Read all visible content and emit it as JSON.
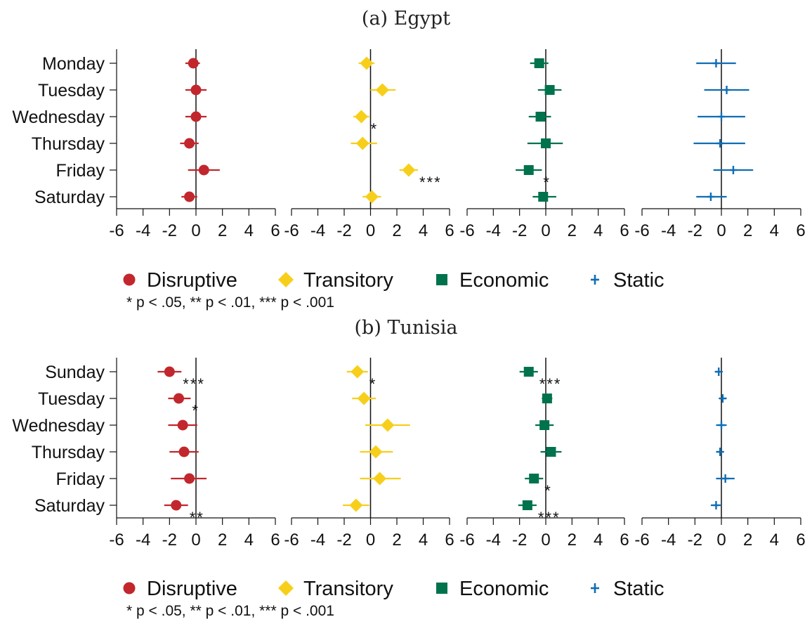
{
  "colors": {
    "disruptive": "#c1272d",
    "transitory": "#f7cf1b",
    "economic": "#00724e",
    "static": "#0f6db5"
  },
  "legend": {
    "items": [
      {
        "label": "Disruptive",
        "marker": "circle",
        "color_key": "disruptive"
      },
      {
        "label": "Transitory",
        "marker": "diamond",
        "color_key": "transitory"
      },
      {
        "label": "Economic",
        "marker": "square",
        "color_key": "economic"
      },
      {
        "label": "Static",
        "marker": "plus",
        "color_key": "static"
      }
    ],
    "note": "* p < .05, ** p < .01, *** p < .001"
  },
  "chart_data": [
    {
      "type": "scatter",
      "title": "(a) Egypt",
      "categories": [
        "Monday",
        "Tuesday",
        "Wednesday",
        "Thursday",
        "Friday",
        "Saturday"
      ],
      "xlim": [
        -6,
        6
      ],
      "xticks": [
        "-6",
        "-4",
        "-2",
        "0",
        "2",
        "4",
        "6"
      ],
      "series": [
        {
          "name": "Disruptive",
          "marker": "circle",
          "color_key": "disruptive",
          "values": [
            -0.2,
            0.0,
            0.0,
            -0.5,
            0.6,
            -0.5
          ],
          "ci_low": [
            -0.8,
            -0.8,
            -0.8,
            -1.2,
            -0.6,
            -1.1
          ],
          "ci_high": [
            0.3,
            0.8,
            0.8,
            0.2,
            1.8,
            0.1
          ],
          "sig": [
            "",
            "",
            "",
            "",
            "",
            ""
          ]
        },
        {
          "name": "Transitory",
          "marker": "diamond",
          "color_key": "transitory",
          "values": [
            -0.3,
            0.9,
            -0.7,
            -0.6,
            2.9,
            0.1
          ],
          "ci_low": [
            -0.9,
            0.0,
            -1.3,
            -1.5,
            2.2,
            -0.6
          ],
          "ci_high": [
            0.3,
            1.9,
            -0.1,
            0.5,
            3.6,
            0.8
          ],
          "sig": [
            "",
            "",
            "*",
            "",
            "***",
            ""
          ]
        },
        {
          "name": "Economic",
          "marker": "square",
          "color_key": "economic",
          "values": [
            -0.5,
            0.3,
            -0.4,
            0.0,
            -1.3,
            -0.2
          ],
          "ci_low": [
            -1.2,
            -0.6,
            -1.3,
            -1.4,
            -2.3,
            -1.0
          ],
          "ci_high": [
            0.2,
            1.2,
            0.4,
            1.3,
            -0.3,
            0.8
          ],
          "sig": [
            "",
            "",
            "",
            "",
            "*",
            ""
          ]
        },
        {
          "name": "Static",
          "marker": "plus",
          "color_key": "static",
          "values": [
            -0.4,
            0.4,
            0.0,
            -0.1,
            0.9,
            -0.8
          ],
          "ci_low": [
            -1.9,
            -1.3,
            -1.8,
            -2.1,
            -0.6,
            -1.9
          ],
          "ci_high": [
            1.1,
            2.1,
            1.8,
            1.8,
            2.4,
            0.4
          ],
          "sig": [
            "",
            "",
            "",
            "",
            "",
            ""
          ]
        }
      ]
    },
    {
      "type": "scatter",
      "title": "(b) Tunisia",
      "categories": [
        "Sunday",
        "Tuesday",
        "Wednesday",
        "Thursday",
        "Friday",
        "Saturday"
      ],
      "xlim": [
        -6,
        6
      ],
      "xticks": [
        "-6",
        "-4",
        "-2",
        "0",
        "2",
        "4",
        "6"
      ],
      "series": [
        {
          "name": "Disruptive",
          "marker": "circle",
          "color_key": "disruptive",
          "values": [
            -2.0,
            -1.3,
            -1.0,
            -0.9,
            -0.5,
            -1.5
          ],
          "ci_low": [
            -2.9,
            -2.1,
            -2.1,
            -2.0,
            -1.9,
            -2.4
          ],
          "ci_high": [
            -1.1,
            -0.4,
            0.1,
            0.2,
            0.8,
            -0.6
          ],
          "sig": [
            "***",
            "*",
            "",
            "",
            "",
            "**"
          ]
        },
        {
          "name": "Transitory",
          "marker": "diamond",
          "color_key": "transitory",
          "values": [
            -1.0,
            -0.5,
            1.3,
            0.4,
            0.7,
            -1.1
          ],
          "ci_low": [
            -1.8,
            -1.4,
            -0.4,
            -0.8,
            -0.8,
            -2.1
          ],
          "ci_high": [
            -0.2,
            0.4,
            3.0,
            1.7,
            2.3,
            -0.1
          ],
          "sig": [
            "*",
            "",
            "",
            "",
            "",
            ""
          ]
        },
        {
          "name": "Economic",
          "marker": "square",
          "color_key": "economic",
          "values": [
            -1.3,
            0.1,
            -0.1,
            0.4,
            -0.9,
            -1.4
          ],
          "ci_low": [
            -2.0,
            -0.3,
            -0.8,
            -0.4,
            -1.6,
            -2.1
          ],
          "ci_high": [
            -0.6,
            0.5,
            0.6,
            1.2,
            -0.2,
            -0.7
          ],
          "sig": [
            "***",
            "",
            "",
            "",
            "*",
            "***"
          ]
        },
        {
          "name": "Static",
          "marker": "plus",
          "color_key": "static",
          "values": [
            -0.2,
            0.1,
            0.0,
            -0.1,
            0.3,
            -0.4
          ],
          "ci_low": [
            -0.5,
            -0.2,
            -0.4,
            -0.4,
            -0.4,
            -0.8
          ],
          "ci_high": [
            0.1,
            0.4,
            0.4,
            0.2,
            1.0,
            0.0
          ],
          "sig": [
            "",
            "",
            "",
            "",
            "",
            ""
          ]
        }
      ]
    }
  ]
}
